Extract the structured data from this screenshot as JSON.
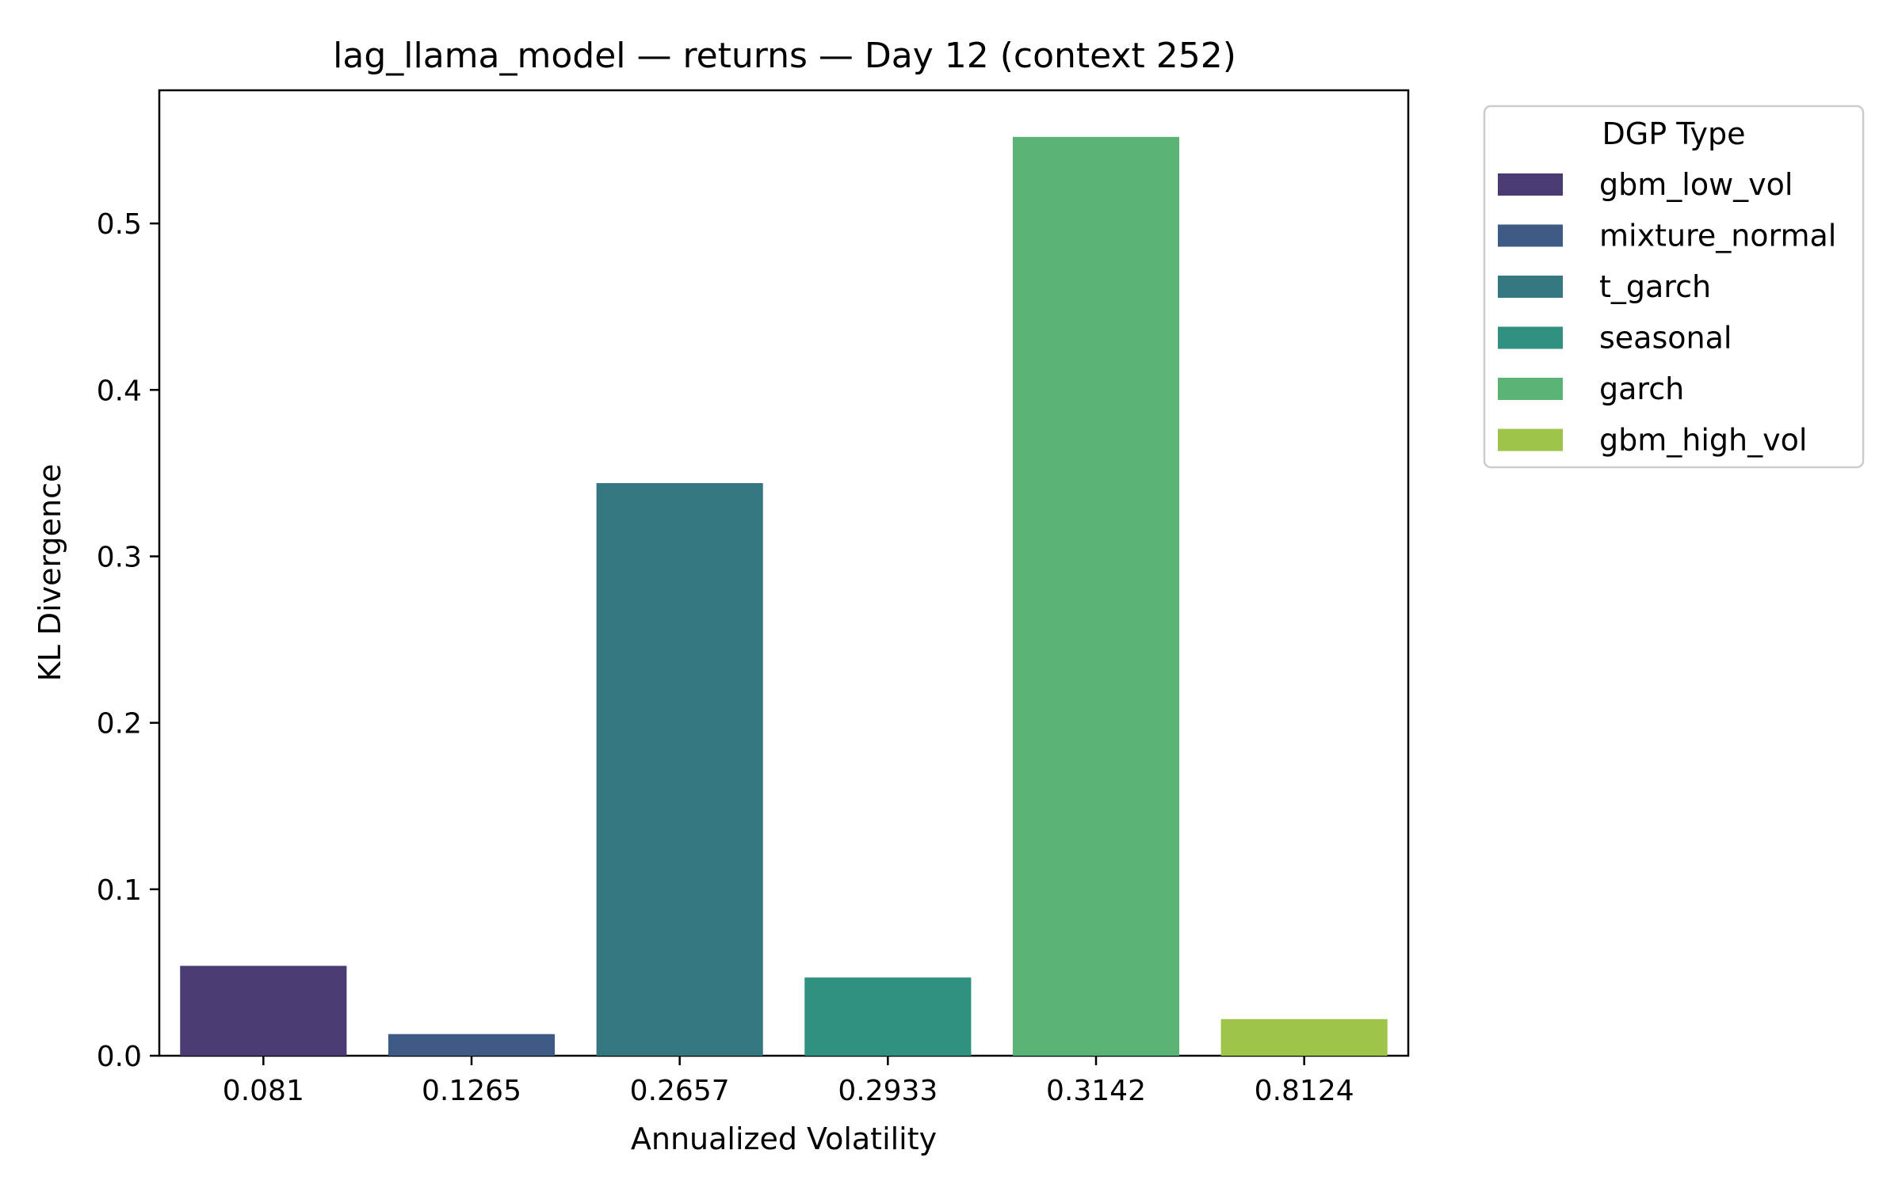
{
  "chart_data": {
    "type": "bar",
    "title": "lag_llama_model — returns — Day 12 (context 252)",
    "xlabel": "Annualized Volatility",
    "ylabel": "KL Divergence",
    "categories": [
      "0.081",
      "0.1265",
      "0.2657",
      "0.2933",
      "0.3142",
      "0.8124"
    ],
    "values": [
      0.054,
      0.013,
      0.344,
      0.047,
      0.552,
      0.022
    ],
    "bar_colors": [
      "#4a3b73",
      "#3e5b85",
      "#357780",
      "#309180",
      "#5ab274",
      "#9ec54a"
    ],
    "ylim": [
      0,
      0.58
    ],
    "yticks": [
      0.0,
      0.1,
      0.2,
      0.3,
      0.4,
      0.5
    ],
    "ytick_labels": [
      "0.0",
      "0.1",
      "0.2",
      "0.3",
      "0.4",
      "0.5"
    ],
    "grid": false,
    "legend": {
      "title": "DGP Type",
      "placement": "outside-upper-right",
      "entries": [
        {
          "name": "gbm_low_vol",
          "color": "#4a3b73"
        },
        {
          "name": "mixture_normal",
          "color": "#3e5b85"
        },
        {
          "name": "t_garch",
          "color": "#357780"
        },
        {
          "name": "seasonal",
          "color": "#309180"
        },
        {
          "name": "garch",
          "color": "#5ab274"
        },
        {
          "name": "gbm_high_vol",
          "color": "#9ec54a"
        }
      ]
    }
  }
}
